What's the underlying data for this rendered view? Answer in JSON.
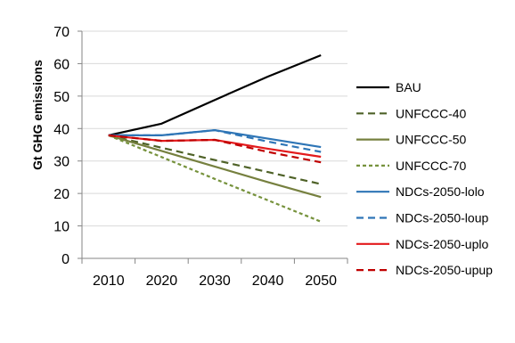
{
  "chart_data": {
    "type": "line",
    "title": "",
    "xlabel": "",
    "ylabel": "Gt GHG emissions",
    "x": [
      2010,
      2020,
      2030,
      2040,
      2050
    ],
    "x_tick_labels": [
      "2010",
      "2020",
      "2030",
      "2040",
      "2050"
    ],
    "xlim": [
      2010,
      2050
    ],
    "ylim": [
      0,
      70
    ],
    "y_ticks": [
      0,
      10,
      20,
      30,
      40,
      50,
      60,
      70
    ],
    "y_tick_labels": [
      "0",
      "10",
      "20",
      "30",
      "40",
      "50",
      "60",
      "70"
    ],
    "grid": "horizontal",
    "legend_position": "right",
    "series": [
      {
        "name": "BAU",
        "color": "#000000",
        "dash": "solid",
        "values": [
          37.9,
          41.5,
          48.8,
          56.0,
          62.6
        ]
      },
      {
        "name": "UNFCCC-40",
        "color": "#4f6228",
        "dash": "dashed",
        "values": [
          37.9,
          34.1,
          30.3,
          26.6,
          22.9
        ]
      },
      {
        "name": "UNFCCC-50",
        "color": "#76803f",
        "dash": "solid",
        "values": [
          37.9,
          33.1,
          28.3,
          23.5,
          18.9
        ]
      },
      {
        "name": "UNFCCC-70",
        "color": "#76923c",
        "dash": "dashed-fine",
        "values": [
          37.9,
          31.2,
          24.5,
          17.9,
          11.3
        ]
      },
      {
        "name": "NDCs-2050-lolo",
        "color": "#2e75b6",
        "dash": "solid",
        "values": [
          37.9,
          37.9,
          39.5,
          36.9,
          34.3
        ]
      },
      {
        "name": "NDCs-2050-loup",
        "color": "#2e75b6",
        "dash": "dashed",
        "values": [
          37.9,
          37.9,
          39.5,
          36.0,
          32.8
        ]
      },
      {
        "name": "NDCs-2050-uplo",
        "color": "#e31a1c",
        "dash": "solid",
        "values": [
          37.9,
          36.2,
          36.5,
          33.8,
          31.3
        ]
      },
      {
        "name": "NDCs-2050-upup",
        "color": "#c00000",
        "dash": "dashed",
        "values": [
          37.9,
          36.2,
          36.5,
          32.8,
          29.6
        ]
      }
    ]
  }
}
